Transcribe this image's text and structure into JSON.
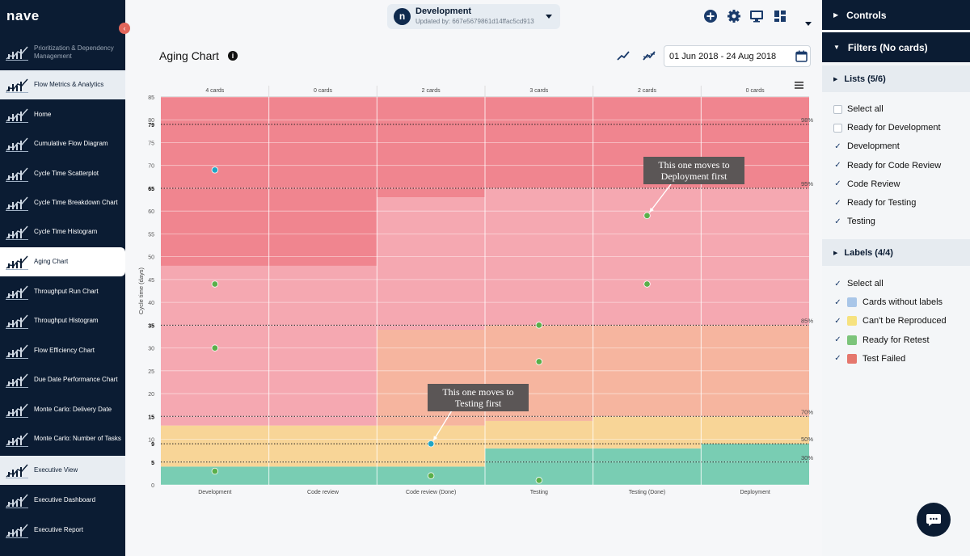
{
  "app": {
    "logo": "nave"
  },
  "header": {
    "workspace_title": "Development",
    "workspace_updated": "Updated by: 667e5679861d14ffac5cd913",
    "workspace_logo": "n",
    "icons": [
      "add-icon",
      "gear-icon",
      "monitor-icon",
      "dashboard-icon"
    ]
  },
  "sidebar": {
    "items": [
      {
        "label": "Prioritization & Dependency Management",
        "kind": "section-disabled",
        "icon": "priority-icon"
      },
      {
        "label": "Flow Metrics & Analytics",
        "kind": "section",
        "icon": "analytics-icon"
      },
      {
        "label": "Home",
        "kind": "item",
        "icon": "home-icon"
      },
      {
        "label": "Cumulative Flow Diagram",
        "kind": "item",
        "icon": "cfd-icon"
      },
      {
        "label": "Cycle Time Scatterplot",
        "kind": "item",
        "icon": "scatter-icon"
      },
      {
        "label": "Cycle Time Breakdown Chart",
        "kind": "item",
        "icon": "breakdown-icon"
      },
      {
        "label": "Cycle Time Histogram",
        "kind": "item",
        "icon": "histogram-icon"
      },
      {
        "label": "Aging Chart",
        "kind": "active",
        "icon": "aging-icon"
      },
      {
        "label": "Throughput Run Chart",
        "kind": "item",
        "icon": "run-chart-icon"
      },
      {
        "label": "Throughput Histogram",
        "kind": "item",
        "icon": "histogram-icon"
      },
      {
        "label": "Flow Efficiency Chart",
        "kind": "item",
        "icon": "efficiency-icon"
      },
      {
        "label": "Due Date Performance Chart",
        "kind": "item",
        "icon": "due-date-icon"
      },
      {
        "label": "Monte Carlo: Delivery Date",
        "kind": "item",
        "icon": "bell-curve-icon"
      },
      {
        "label": "Monte Carlo: Number of Tasks",
        "kind": "item",
        "icon": "bell-curve-icon"
      },
      {
        "label": "Executive View",
        "kind": "section",
        "icon": "executive-icon"
      },
      {
        "label": "Executive Dashboard",
        "kind": "item",
        "icon": "dashboard-icon"
      },
      {
        "label": "Executive Report",
        "kind": "item",
        "icon": "report-icon"
      }
    ]
  },
  "page": {
    "title": "Aging Chart",
    "date_range": "01 Jun 2018 - 24 Aug 2018"
  },
  "chart_data": {
    "type": "scatter",
    "title": "Aging Chart",
    "ylabel": "Cycle time (days)",
    "xlabel": "",
    "ylim": [
      0,
      85
    ],
    "yticks": [
      0,
      5,
      10,
      15,
      20,
      25,
      30,
      35,
      40,
      45,
      50,
      55,
      60,
      65,
      70,
      75,
      80,
      85
    ],
    "categories": [
      "Development",
      "Code review",
      "Code review (Done)",
      "Testing",
      "Testing (Done)",
      "Deployment"
    ],
    "card_counts": [
      "4 cards",
      "0 cards",
      "2 cards",
      "3 cards",
      "2 cards",
      "0 cards"
    ],
    "percentiles": [
      {
        "label": "30%",
        "value": 5
      },
      {
        "label": "50%",
        "value": 9
      },
      {
        "label": "70%",
        "value": 15
      },
      {
        "label": "85%",
        "value": 35
      },
      {
        "label": "95%",
        "value": 65
      },
      {
        "label": "98%",
        "value": 79
      }
    ],
    "zone_colors": [
      "#79cdb3",
      "#f8d597",
      "#f6b59f",
      "#f5a8b1",
      "#f0858f"
    ],
    "zones_by_column": [
      [
        4,
        13,
        13,
        48
      ],
      [
        4,
        13,
        13,
        48
      ],
      [
        4,
        13,
        34,
        63
      ],
      [
        8,
        14,
        35,
        65
      ],
      [
        8,
        15,
        35,
        65
      ],
      [
        9,
        15,
        35,
        65
      ]
    ],
    "points": [
      {
        "column": 0,
        "value": 69,
        "color": "#1fa5c4"
      },
      {
        "column": 0,
        "value": 44,
        "color": "#5aaf4a"
      },
      {
        "column": 0,
        "value": 30,
        "color": "#5aaf4a"
      },
      {
        "column": 0,
        "value": 3,
        "color": "#5aaf4a"
      },
      {
        "column": 2,
        "value": 9,
        "color": "#1fa5c4"
      },
      {
        "column": 2,
        "value": 2,
        "color": "#5aaf4a"
      },
      {
        "column": 3,
        "value": 35,
        "color": "#5aaf4a"
      },
      {
        "column": 3,
        "value": 27,
        "color": "#5aaf4a"
      },
      {
        "column": 3,
        "value": 1,
        "color": "#5aaf4a"
      },
      {
        "column": 4,
        "value": 59,
        "color": "#5aaf4a"
      },
      {
        "column": 4,
        "value": 44,
        "color": "#5aaf4a"
      }
    ],
    "annotations": [
      {
        "text_line1": "This one moves to",
        "text_line2": "Deployment first",
        "target_column": 4,
        "target_value": 59
      },
      {
        "text_line1": "This one moves to",
        "text_line2": "Testing first",
        "target_column": 2,
        "target_value": 9
      }
    ]
  },
  "right_panel": {
    "controls_label": "Controls",
    "filters_label": "Filters (No cards)",
    "lists_label": "Lists  (5/6)",
    "lists": [
      {
        "label": "Select all",
        "checked": false
      },
      {
        "label": "Ready for Development",
        "checked": false
      },
      {
        "label": "Development",
        "checked": true
      },
      {
        "label": "Ready for Code Review",
        "checked": true
      },
      {
        "label": "Code Review",
        "checked": true
      },
      {
        "label": "Ready for Testing",
        "checked": true
      },
      {
        "label": "Testing",
        "checked": true
      }
    ],
    "labels_label": "Labels  (4/4)",
    "labels": [
      {
        "label": "Select all",
        "checked": true,
        "color": ""
      },
      {
        "label": "Cards without labels",
        "checked": true,
        "color": "#a9c6e8"
      },
      {
        "label": "Can't be Reproduced",
        "checked": true,
        "color": "#f6e27f"
      },
      {
        "label": "Ready for Retest",
        "checked": true,
        "color": "#7cc47a"
      },
      {
        "label": "Test Failed",
        "checked": true,
        "color": "#e5776d"
      }
    ]
  }
}
